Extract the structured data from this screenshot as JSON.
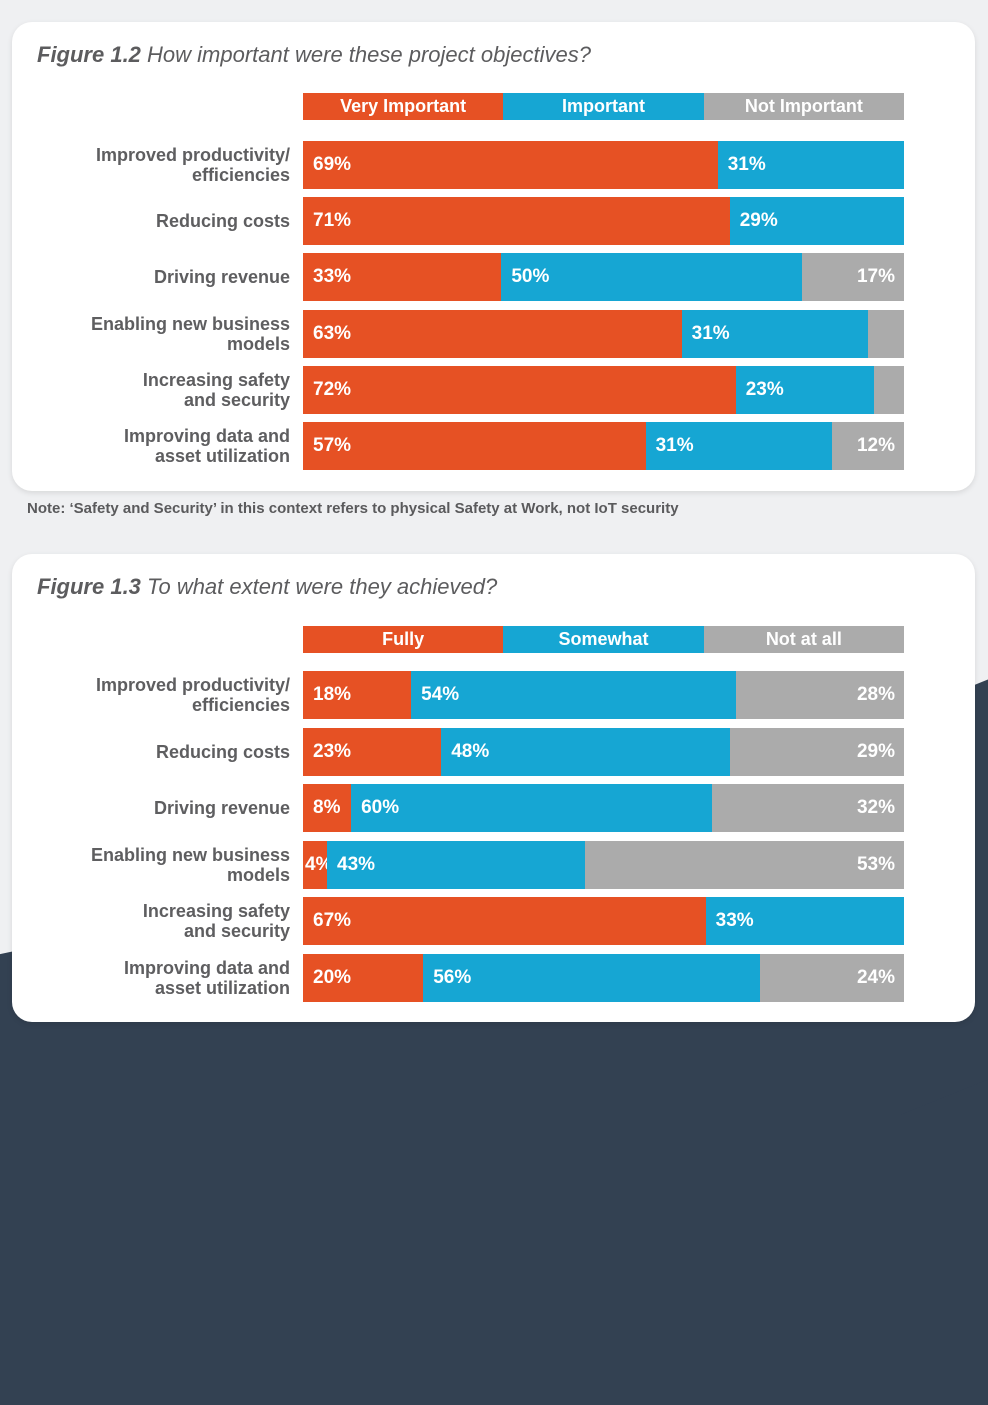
{
  "colors": {
    "very": "#E65124",
    "mid": "#16A6D3",
    "none": "#ABABAB",
    "navy": "#334152"
  },
  "note": "Note: ‘Safety and Security’ in this context refers to physical Safety at Work, not IoT security",
  "chart_data": [
    {
      "type": "bar",
      "orientation": "horizontal-stacked-100",
      "title_prefix": "Figure 1.2",
      "title": "How important were these project objectives?",
      "legend": [
        "Very Important",
        "Important",
        "Not Important"
      ],
      "categories": [
        "Improved productivity/ efficiencies",
        "Reducing costs",
        "Driving revenue",
        "Enabling new business models",
        "Increasing safety and security",
        "Improving data and asset utilization"
      ],
      "series": [
        {
          "name": "Very Important",
          "values": [
            69,
            71,
            33,
            63,
            72,
            57
          ]
        },
        {
          "name": "Important",
          "values": [
            31,
            29,
            50,
            31,
            23,
            31
          ]
        },
        {
          "name": "Not Important",
          "values": [
            0,
            0,
            17,
            6,
            5,
            12
          ]
        }
      ],
      "unit": "%",
      "xlim": [
        0,
        100
      ]
    },
    {
      "type": "bar",
      "orientation": "horizontal-stacked-100",
      "title_prefix": "Figure 1.3",
      "title": "To what extent were they achieved?",
      "legend": [
        "Fully",
        "Somewhat",
        "Not at all"
      ],
      "categories": [
        "Improved productivity/ efficiencies",
        "Reducing costs",
        "Driving revenue",
        "Enabling new business models",
        "Increasing safety and security",
        "Improving data and asset utilization"
      ],
      "series": [
        {
          "name": "Fully",
          "values": [
            18,
            23,
            8,
            4,
            67,
            20
          ]
        },
        {
          "name": "Somewhat",
          "values": [
            54,
            48,
            60,
            43,
            33,
            56
          ]
        },
        {
          "name": "Not at all",
          "values": [
            28,
            29,
            32,
            53,
            0,
            24
          ]
        }
      ],
      "unit": "%",
      "xlim": [
        0,
        100
      ]
    }
  ],
  "labels_multiline": [
    [
      "Improved productivity/",
      "efficiencies"
    ],
    [
      "Reducing costs"
    ],
    [
      "Driving revenue"
    ],
    [
      "Enabling new business",
      "models"
    ],
    [
      "Increasing safety",
      "and security"
    ],
    [
      "Improving data and",
      "asset utilization"
    ]
  ]
}
